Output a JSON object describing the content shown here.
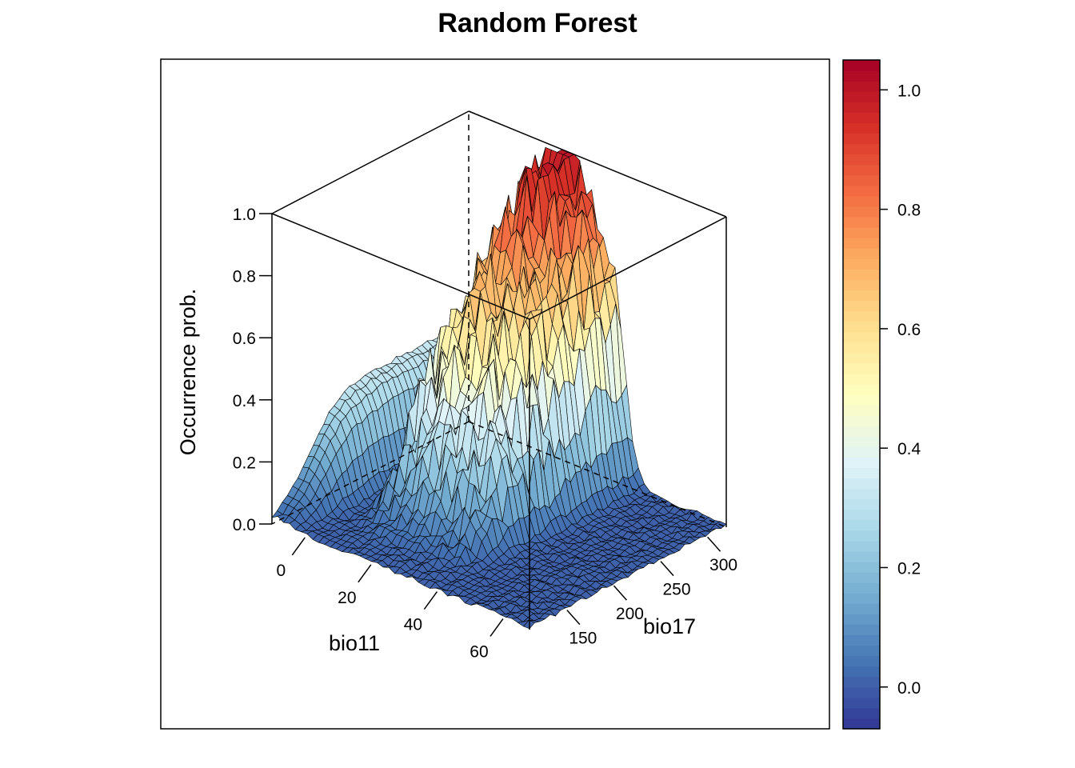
{
  "chart_data": {
    "type": "surface3d",
    "title": "Random Forest",
    "xlabel": "bio11",
    "ylabel": "bio17",
    "zlabel": "Occurrence prob.",
    "x_ticks": [
      0,
      20,
      40,
      60
    ],
    "y_ticks": [
      150,
      200,
      250,
      300
    ],
    "z_ticks": [
      "0.0",
      "0.2",
      "0.4",
      "0.6",
      "0.8",
      "1.0"
    ],
    "colorbar_ticks": [
      "0.0",
      "0.2",
      "0.4",
      "0.6",
      "0.8",
      "1.0"
    ],
    "colorbar_range": [
      -0.07,
      1.05
    ],
    "xlim": [
      -10,
      68
    ],
    "ylim": [
      110,
      320
    ],
    "zlim": [
      0,
      1
    ],
    "palette": [
      "#313695",
      "#4575b4",
      "#74add1",
      "#abd9e9",
      "#e0f3f8",
      "#ffffbf",
      "#fee090",
      "#fdae61",
      "#f46d43",
      "#d73027",
      "#a50026"
    ],
    "surface_description": "Occurrence probability peaks (~1.0) for bio11 between about 15 and 35 and bio17 around 230-300; low plateau (~0.3) for bio11 below 0; near zero for bio11 above 45 or bio17 below 190."
  }
}
